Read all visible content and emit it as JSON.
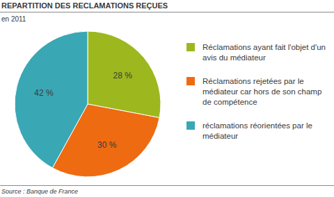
{
  "chart_data": {
    "type": "pie",
    "title": "REPARTITION DES RECLAMATIONS REÇUES",
    "subtitle": "en 2011",
    "categories": [
      "Réclamations ayant fait l'objet d'un avis du médiateur",
      "Réclamations rejetées par le médiateur car hors de son champ de compétence",
      "réclamations réorientées par le médiateur"
    ],
    "values": [
      28,
      30,
      42
    ],
    "value_labels": [
      "28 %",
      "30 %",
      "42 %"
    ],
    "colors": [
      "#9cb81e",
      "#ee6b12",
      "#3aa7b4"
    ],
    "data_labels": true,
    "legend": "right",
    "source": "Source : Banque de France"
  }
}
